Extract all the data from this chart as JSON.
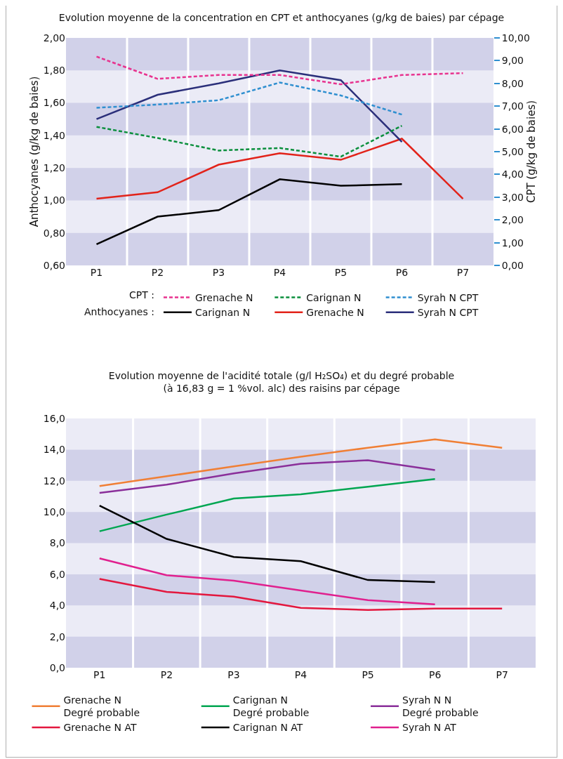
{
  "chart_data": [
    {
      "type": "line",
      "title": "Evolution moyenne de la concentration en CPT et anthocyanes (g/kg de baies) par cépage",
      "ylabel": "Anthocyanes (g/kg de baies)",
      "y2label": "CPT (g/kg de baies)",
      "annotations": [
        "CPT :",
        "Anthocyanes :"
      ],
      "categories": [
        "P1",
        "P2",
        "P3",
        "P4",
        "P5",
        "P6",
        "P7"
      ],
      "series": [
        {
          "name": "Grenache N",
          "color": "#e8338f",
          "axis": "y2",
          "line_style": "dashed",
          "values": [
            9.18,
            8.2,
            8.37,
            8.37,
            7.96,
            8.37,
            8.45
          ]
        },
        {
          "name": "Carignan N",
          "color": "#0a8f3c",
          "axis": "y2",
          "line_style": "dashed",
          "values": [
            6.09,
            5.6,
            5.05,
            5.16,
            4.78,
            6.14,
            null
          ]
        },
        {
          "name": "Syrah N CPT",
          "color": "#2f8fd0",
          "axis": "y2",
          "line_style": "dashed",
          "values": [
            6.93,
            7.07,
            7.26,
            8.04,
            7.47,
            6.63,
            null
          ]
        },
        {
          "name": "Carignan N",
          "color": "#000000",
          "line_style": "solid",
          "values": [
            0.73,
            0.9,
            0.94,
            1.13,
            1.09,
            1.1,
            null
          ]
        },
        {
          "name": "Grenache N",
          "color": "#e2231a",
          "line_style": "solid",
          "values": [
            1.01,
            1.05,
            1.22,
            1.29,
            1.25,
            1.38,
            1.01
          ]
        },
        {
          "name": "Syrah N CPT",
          "color": "#2b2f7a",
          "line_style": "solid",
          "values": [
            1.5,
            1.65,
            1.72,
            1.8,
            1.74,
            1.36,
            null
          ]
        }
      ],
      "ylim": [
        0.6,
        2.0
      ],
      "yticks": [
        {
          "value": 0.6,
          "label": "0,60"
        },
        {
          "value": 0.8,
          "label": "0,80"
        },
        {
          "value": 1.0,
          "label": "1,00"
        },
        {
          "value": 1.2,
          "label": "1,20"
        },
        {
          "value": 1.4,
          "label": "1,40"
        },
        {
          "value": 1.6,
          "label": "1,60"
        },
        {
          "value": 1.8,
          "label": "1,80"
        },
        {
          "value": 2.0,
          "label": "2,00"
        }
      ],
      "y2lim": [
        0,
        10
      ],
      "y2ticks": [
        {
          "value": 0,
          "label": "0,00"
        },
        {
          "value": 1,
          "label": "1,00"
        },
        {
          "value": 2,
          "label": "2,00"
        },
        {
          "value": 3,
          "label": "3,00"
        },
        {
          "value": 4,
          "label": "4,00"
        },
        {
          "value": 5,
          "label": "5,00"
        },
        {
          "value": 6,
          "label": "6,00"
        },
        {
          "value": 7,
          "label": "7,00"
        },
        {
          "value": 8,
          "label": "8,00"
        },
        {
          "value": 9,
          "label": "9,00"
        },
        {
          "value": 10,
          "label": "10,00"
        }
      ],
      "grid": true,
      "legend": "bottom",
      "marker": "none"
    },
    {
      "type": "line",
      "title": "Evolution moyenne de l'acidité totale (g/l H₂SO₄) et du degré probable\n(à 16,83 g = 1 %vol. alc) des raisins par cépage",
      "categories": [
        "P1",
        "P2",
        "P3",
        "P4",
        "P5",
        "P6",
        "P7"
      ],
      "series": [
        {
          "name": "Grenache N\nDegré probable",
          "color": "#f07f35",
          "values": [
            11.66,
            12.29,
            12.92,
            13.54,
            14.12,
            14.66,
            14.12
          ]
        },
        {
          "name": "Carignan N\nDegré probable",
          "color": "#00a651",
          "values": [
            8.76,
            9.83,
            10.86,
            11.13,
            11.62,
            12.11,
            null
          ]
        },
        {
          "name": "Syrah N N\nDegré probable",
          "color": "#8a2f9a",
          "values": [
            11.22,
            11.75,
            12.47,
            13.09,
            13.32,
            12.69,
            null
          ]
        },
        {
          "name": "Grenache N AT",
          "color": "#e3173e",
          "values": [
            5.7,
            4.87,
            4.56,
            3.84,
            3.71,
            3.8,
            3.8
          ]
        },
        {
          "name": "Carignan N AT",
          "color": "#000000",
          "values": [
            10.41,
            8.27,
            7.11,
            6.84,
            5.63,
            5.5,
            null
          ]
        },
        {
          "name": "Syrah N AT",
          "color": "#e0208e",
          "values": [
            7.02,
            5.94,
            5.59,
            4.96,
            4.34,
            4.07,
            null
          ]
        }
      ],
      "ylim": [
        0,
        16
      ],
      "yticks": [
        {
          "value": 0,
          "label": "0,0"
        },
        {
          "value": 2,
          "label": "2,0"
        },
        {
          "value": 4,
          "label": "4,0"
        },
        {
          "value": 6,
          "label": "6,0"
        },
        {
          "value": 8,
          "label": "8,0"
        },
        {
          "value": 10,
          "label": "10,0"
        },
        {
          "value": 12,
          "label": "12,0"
        },
        {
          "value": 14,
          "label": "14,0"
        },
        {
          "value": 16,
          "label": "16,0"
        }
      ],
      "grid": true,
      "legend": "bottom",
      "marker": "none",
      "line_style": "solid"
    }
  ]
}
